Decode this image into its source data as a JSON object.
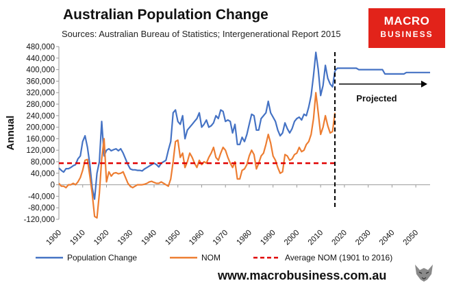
{
  "header": {
    "title": "Australian Population Change",
    "subtitle": "Sources: Australian Bureau of Statistics; Intergenerational Report 2015"
  },
  "logo": {
    "line1": "MACRO",
    "line2": "BUSINESS",
    "color": "#e2231a"
  },
  "footer": {
    "website": "www.macrobusiness.com.au"
  },
  "chart_data": {
    "type": "line",
    "title": "Australian Population Change",
    "ylabel": "Annual",
    "xlabel": "",
    "ylim": [
      -120000,
      480000
    ],
    "xlim": [
      1900,
      2056
    ],
    "yticks": [
      -120000,
      -80000,
      -40000,
      0,
      40000,
      80000,
      120000,
      160000,
      200000,
      240000,
      280000,
      320000,
      360000,
      400000,
      440000,
      480000
    ],
    "ytick_labels": [
      "-120,000",
      "-80,000",
      "-40,000",
      "0",
      "40,000",
      "80,000",
      "120,000",
      "160,000",
      "200,000",
      "240,000",
      "280,000",
      "320,000",
      "360,000",
      "400,000",
      "440,000",
      "480,000"
    ],
    "xticks": [
      1900,
      1910,
      1920,
      1930,
      1940,
      1950,
      1960,
      1970,
      1980,
      1990,
      2000,
      2010,
      2020,
      2030,
      2040,
      2050
    ],
    "xtick_labels": [
      "1900",
      "1910",
      "1920",
      "1930",
      "1940",
      "1950",
      "1960",
      "1970",
      "1980",
      "1990",
      "2000",
      "2010",
      "2020",
      "2030",
      "2040",
      "2050"
    ],
    "grid": false,
    "legend_position": "bottom",
    "series": [
      {
        "name": "Population Change",
        "color": "#4472c4",
        "points": [
          [
            1900,
            58000
          ],
          [
            1901,
            50000
          ],
          [
            1902,
            44000
          ],
          [
            1903,
            56000
          ],
          [
            1904,
            56000
          ],
          [
            1905,
            60000
          ],
          [
            1906,
            66000
          ],
          [
            1907,
            70000
          ],
          [
            1908,
            90000
          ],
          [
            1909,
            100000
          ],
          [
            1910,
            150000
          ],
          [
            1911,
            170000
          ],
          [
            1912,
            130000
          ],
          [
            1913,
            70000
          ],
          [
            1914,
            -10000
          ],
          [
            1915,
            -50000
          ],
          [
            1916,
            40000
          ],
          [
            1917,
            80000
          ],
          [
            1918,
            220000
          ],
          [
            1919,
            100000
          ],
          [
            1920,
            120000
          ],
          [
            1921,
            125000
          ],
          [
            1922,
            118000
          ],
          [
            1923,
            122000
          ],
          [
            1924,
            125000
          ],
          [
            1925,
            118000
          ],
          [
            1926,
            125000
          ],
          [
            1927,
            110000
          ],
          [
            1928,
            90000
          ],
          [
            1929,
            70000
          ],
          [
            1930,
            55000
          ],
          [
            1931,
            52000
          ],
          [
            1932,
            52000
          ],
          [
            1933,
            50000
          ],
          [
            1934,
            50000
          ],
          [
            1935,
            48000
          ],
          [
            1936,
            55000
          ],
          [
            1937,
            60000
          ],
          [
            1938,
            65000
          ],
          [
            1939,
            70000
          ],
          [
            1940,
            75000
          ],
          [
            1941,
            70000
          ],
          [
            1942,
            62000
          ],
          [
            1943,
            75000
          ],
          [
            1944,
            80000
          ],
          [
            1945,
            85000
          ],
          [
            1946,
            120000
          ],
          [
            1947,
            150000
          ],
          [
            1948,
            250000
          ],
          [
            1949,
            260000
          ],
          [
            1950,
            220000
          ],
          [
            1951,
            210000
          ],
          [
            1952,
            240000
          ],
          [
            1953,
            160000
          ],
          [
            1954,
            190000
          ],
          [
            1955,
            200000
          ],
          [
            1956,
            210000
          ],
          [
            1957,
            220000
          ],
          [
            1958,
            230000
          ],
          [
            1959,
            250000
          ],
          [
            1960,
            200000
          ],
          [
            1961,
            210000
          ],
          [
            1962,
            225000
          ],
          [
            1963,
            200000
          ],
          [
            1964,
            205000
          ],
          [
            1965,
            215000
          ],
          [
            1966,
            240000
          ],
          [
            1967,
            230000
          ],
          [
            1968,
            260000
          ],
          [
            1969,
            255000
          ],
          [
            1970,
            220000
          ],
          [
            1971,
            225000
          ],
          [
            1972,
            220000
          ],
          [
            1973,
            180000
          ],
          [
            1974,
            210000
          ],
          [
            1975,
            140000
          ],
          [
            1976,
            140000
          ],
          [
            1977,
            165000
          ],
          [
            1978,
            150000
          ],
          [
            1979,
            175000
          ],
          [
            1980,
            210000
          ],
          [
            1981,
            245000
          ],
          [
            1982,
            240000
          ],
          [
            1983,
            190000
          ],
          [
            1984,
            190000
          ],
          [
            1985,
            230000
          ],
          [
            1986,
            240000
          ],
          [
            1987,
            250000
          ],
          [
            1988,
            290000
          ],
          [
            1989,
            250000
          ],
          [
            1990,
            235000
          ],
          [
            1991,
            220000
          ],
          [
            1992,
            190000
          ],
          [
            1993,
            170000
          ],
          [
            1994,
            180000
          ],
          [
            1995,
            215000
          ],
          [
            1996,
            195000
          ],
          [
            1997,
            180000
          ],
          [
            1998,
            195000
          ],
          [
            1999,
            220000
          ],
          [
            2000,
            230000
          ],
          [
            2001,
            235000
          ],
          [
            2002,
            225000
          ],
          [
            2003,
            245000
          ],
          [
            2004,
            240000
          ],
          [
            2005,
            270000
          ],
          [
            2006,
            310000
          ],
          [
            2007,
            380000
          ],
          [
            2008,
            460000
          ],
          [
            2009,
            400000
          ],
          [
            2010,
            310000
          ],
          [
            2011,
            345000
          ],
          [
            2012,
            415000
          ],
          [
            2013,
            370000
          ],
          [
            2014,
            350000
          ],
          [
            2015,
            340000
          ],
          [
            2016,
            395000
          ]
        ]
      },
      {
        "name": "Population Change",
        "color": "#4472c4",
        "points": [
          [
            2016,
            395000
          ],
          [
            2017,
            405000
          ],
          [
            2020,
            405000
          ],
          [
            2025,
            405000
          ],
          [
            2026,
            400000
          ],
          [
            2036,
            400000
          ],
          [
            2037,
            385000
          ],
          [
            2045,
            385000
          ],
          [
            2046,
            390000
          ],
          [
            2056,
            390000
          ]
        ]
      },
      {
        "name": "NOM",
        "color": "#ed7d31",
        "points": [
          [
            1900,
            5000
          ],
          [
            1901,
            -5000
          ],
          [
            1902,
            -5000
          ],
          [
            1903,
            -10000
          ],
          [
            1904,
            0
          ],
          [
            1905,
            0
          ],
          [
            1906,
            5000
          ],
          [
            1907,
            0
          ],
          [
            1908,
            10000
          ],
          [
            1909,
            25000
          ],
          [
            1910,
            50000
          ],
          [
            1911,
            85000
          ],
          [
            1912,
            88000
          ],
          [
            1913,
            30000
          ],
          [
            1914,
            -30000
          ],
          [
            1915,
            -110000
          ],
          [
            1916,
            -115000
          ],
          [
            1917,
            -30000
          ],
          [
            1918,
            90000
          ],
          [
            1919,
            160000
          ],
          [
            1920,
            10000
          ],
          [
            1921,
            45000
          ],
          [
            1922,
            30000
          ],
          [
            1923,
            40000
          ],
          [
            1924,
            42000
          ],
          [
            1925,
            38000
          ],
          [
            1926,
            40000
          ],
          [
            1927,
            45000
          ],
          [
            1928,
            25000
          ],
          [
            1929,
            5000
          ],
          [
            1930,
            -5000
          ],
          [
            1931,
            -10000
          ],
          [
            1932,
            -5000
          ],
          [
            1933,
            0
          ],
          [
            1934,
            0
          ],
          [
            1935,
            0
          ],
          [
            1936,
            2000
          ],
          [
            1937,
            5000
          ],
          [
            1938,
            10000
          ],
          [
            1939,
            12000
          ],
          [
            1940,
            8000
          ],
          [
            1941,
            5000
          ],
          [
            1942,
            5000
          ],
          [
            1943,
            10000
          ],
          [
            1944,
            5000
          ],
          [
            1945,
            0
          ],
          [
            1946,
            -5000
          ],
          [
            1947,
            20000
          ],
          [
            1948,
            80000
          ],
          [
            1949,
            150000
          ],
          [
            1950,
            155000
          ],
          [
            1951,
            95000
          ],
          [
            1952,
            110000
          ],
          [
            1953,
            60000
          ],
          [
            1954,
            80000
          ],
          [
            1955,
            110000
          ],
          [
            1956,
            95000
          ],
          [
            1957,
            75000
          ],
          [
            1958,
            60000
          ],
          [
            1959,
            85000
          ],
          [
            1960,
            70000
          ],
          [
            1961,
            80000
          ],
          [
            1962,
            75000
          ],
          [
            1963,
            95000
          ],
          [
            1964,
            110000
          ],
          [
            1965,
            130000
          ],
          [
            1966,
            95000
          ],
          [
            1967,
            85000
          ],
          [
            1968,
            110000
          ],
          [
            1969,
            130000
          ],
          [
            1970,
            120000
          ],
          [
            1971,
            95000
          ],
          [
            1972,
            75000
          ],
          [
            1973,
            60000
          ],
          [
            1974,
            80000
          ],
          [
            1975,
            20000
          ],
          [
            1976,
            20000
          ],
          [
            1977,
            50000
          ],
          [
            1978,
            55000
          ],
          [
            1979,
            70000
          ],
          [
            1980,
            100000
          ],
          [
            1981,
            120000
          ],
          [
            1982,
            105000
          ],
          [
            1983,
            55000
          ],
          [
            1984,
            75000
          ],
          [
            1985,
            100000
          ],
          [
            1986,
            110000
          ],
          [
            1987,
            140000
          ],
          [
            1988,
            175000
          ],
          [
            1989,
            145000
          ],
          [
            1990,
            100000
          ],
          [
            1991,
            85000
          ],
          [
            1992,
            60000
          ],
          [
            1993,
            40000
          ],
          [
            1994,
            45000
          ],
          [
            1995,
            105000
          ],
          [
            1996,
            100000
          ],
          [
            1997,
            85000
          ],
          [
            1998,
            90000
          ],
          [
            1999,
            105000
          ],
          [
            2000,
            110000
          ],
          [
            2001,
            130000
          ],
          [
            2002,
            115000
          ],
          [
            2003,
            120000
          ],
          [
            2004,
            140000
          ],
          [
            2005,
            150000
          ],
          [
            2006,
            175000
          ],
          [
            2007,
            230000
          ],
          [
            2008,
            320000
          ],
          [
            2009,
            250000
          ],
          [
            2010,
            175000
          ],
          [
            2011,
            200000
          ],
          [
            2012,
            240000
          ],
          [
            2013,
            205000
          ],
          [
            2014,
            180000
          ],
          [
            2015,
            185000
          ],
          [
            2016,
            250000
          ]
        ]
      },
      {
        "name": "Average NOM (1901 to 2016)",
        "color": "#e00000",
        "style": "dashed",
        "points": [
          [
            1900,
            75000
          ],
          [
            2016,
            75000
          ]
        ]
      }
    ],
    "annotations": [
      {
        "text": "Projected",
        "x": 2025,
        "y": 290000,
        "arrow": "right"
      }
    ],
    "vline": {
      "x": 2016,
      "style": "dashed",
      "color": "#000000"
    }
  },
  "legend": [
    {
      "label": "Population Change",
      "color": "#4472c4",
      "style": "solid"
    },
    {
      "label": "NOM",
      "color": "#ed7d31",
      "style": "solid"
    },
    {
      "label": "Average NOM (1901 to 2016)",
      "color": "#e00000",
      "style": "dashed"
    }
  ]
}
